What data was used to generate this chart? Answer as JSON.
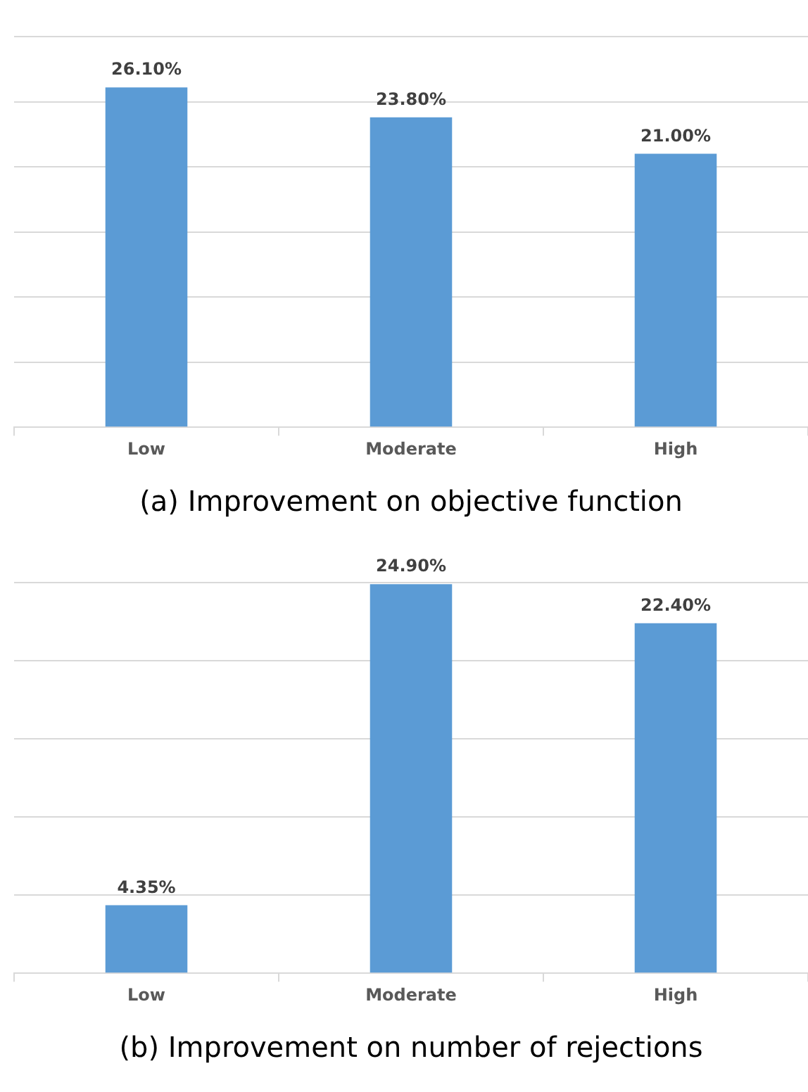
{
  "chart_data": [
    {
      "type": "bar",
      "title": "(a) Improvement on objective function",
      "categories": [
        "Low",
        "Moderate",
        "High"
      ],
      "values": [
        26.1,
        23.8,
        21.0
      ],
      "value_labels": [
        "26.10%",
        "23.80%",
        "21.00%"
      ],
      "color": "#5b9bd5",
      "grid": "y",
      "tick_labels": "x"
    },
    {
      "type": "bar",
      "title": "(b) Improvement on number of rejections",
      "categories": [
        "Low",
        "Moderate",
        "High"
      ],
      "values": [
        4.35,
        24.9,
        22.4
      ],
      "value_labels": [
        "4.35%",
        "24.90%",
        "22.40%"
      ],
      "color": "#5b9bd5",
      "grid": "y",
      "tick_labels": "x"
    }
  ]
}
